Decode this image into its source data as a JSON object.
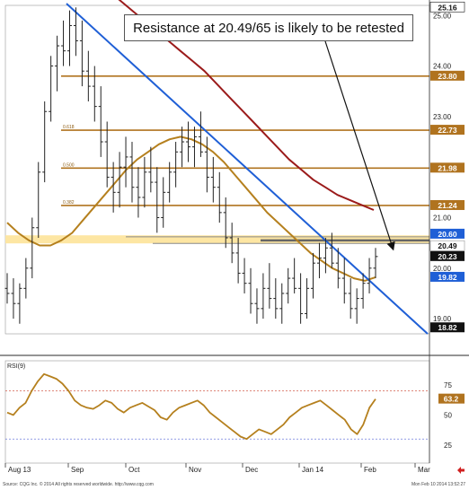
{
  "annotation": "Resistance at 20.49/65 is likely to be retested",
  "footer": {
    "source": "Source: CQG Inc. © 2014 All rights reserved worldwide. http://www.cqg.com",
    "timestamp": "Mon Feb 10 2014 13:52:27"
  },
  "colors": {
    "price_bars": "#222222",
    "trendline": "#1f5fd6",
    "ma_short": "#b5801e",
    "ma_long": "#9b1b1b",
    "fib_lines": "#b0731f",
    "support_band": "#fde6a3",
    "value_label_bg": "#b0731f",
    "dark_label_bg": "#111111",
    "blue_label_bg": "#1f5fd6",
    "rsi_line": "#b5801e",
    "rsi_upper": "#d45f4f",
    "rsi_lower": "#4f5fd4"
  },
  "chart_data": [
    {
      "type": "candlestick",
      "x_ticks": [
        "Aug 13",
        "Sep",
        "Oct",
        "Nov",
        "Dec",
        "Jan 14",
        "Feb",
        "Mar"
      ],
      "y_ticks": [
        "25.00",
        "24.00",
        "23.00",
        "22.00",
        "21.00",
        "20.00",
        "19.00"
      ],
      "ylim": [
        18.7,
        25.2
      ],
      "price_labels": [
        "25.16",
        "23.80",
        "22.73",
        "21.98",
        "21.24",
        "20.60",
        "20.49",
        "20.23",
        "19.82",
        "18.82"
      ],
      "fib_labels": [
        "0.618",
        "0.500",
        "0.382"
      ],
      "levels": {
        "fib_23_80": 23.8,
        "fib_22_73": 22.73,
        "fib_21_98": 21.98,
        "fib_21_24": 21.24,
        "resistance_band": [
          20.49,
          20.65
        ]
      },
      "ohlc": [
        [
          19.6,
          19.9,
          19.3,
          19.5
        ],
        [
          19.5,
          19.8,
          19.0,
          19.3
        ],
        [
          19.3,
          19.7,
          18.9,
          19.6
        ],
        [
          19.6,
          20.2,
          19.4,
          20.0
        ],
        [
          20.0,
          21.0,
          19.8,
          20.8
        ],
        [
          20.8,
          22.1,
          20.6,
          21.9
        ],
        [
          21.9,
          23.3,
          21.7,
          23.1
        ],
        [
          23.1,
          24.2,
          22.9,
          24.0
        ],
        [
          24.0,
          24.6,
          23.5,
          24.4
        ],
        [
          24.4,
          24.9,
          24.0,
          24.3
        ],
        [
          24.3,
          25.1,
          24.0,
          24.8
        ],
        [
          24.8,
          25.16,
          24.2,
          24.5
        ],
        [
          24.5,
          24.9,
          23.6,
          23.9
        ],
        [
          23.9,
          24.3,
          23.3,
          23.6
        ],
        [
          23.6,
          24.0,
          22.9,
          23.2
        ],
        [
          23.2,
          23.6,
          22.2,
          22.5
        ],
        [
          22.5,
          22.9,
          21.6,
          21.8
        ],
        [
          21.8,
          22.1,
          21.1,
          21.5
        ],
        [
          21.5,
          22.3,
          21.2,
          22.0
        ],
        [
          22.0,
          22.6,
          21.6,
          22.2
        ],
        [
          22.2,
          22.5,
          21.3,
          21.6
        ],
        [
          21.6,
          22.0,
          21.0,
          21.4
        ],
        [
          21.4,
          22.2,
          21.2,
          21.9
        ],
        [
          21.9,
          22.4,
          21.5,
          21.7
        ],
        [
          21.7,
          22.0,
          20.7,
          21.0
        ],
        [
          21.0,
          21.8,
          20.8,
          21.5
        ],
        [
          21.5,
          22.1,
          21.3,
          21.9
        ],
        [
          21.9,
          22.5,
          21.6,
          22.3
        ],
        [
          22.3,
          22.8,
          22.0,
          22.5
        ],
        [
          22.5,
          22.9,
          22.1,
          22.4
        ],
        [
          22.4,
          22.8,
          22.0,
          22.6
        ],
        [
          22.6,
          23.1,
          22.2,
          22.3
        ],
        [
          22.3,
          22.6,
          21.5,
          21.8
        ],
        [
          21.8,
          22.2,
          21.3,
          21.6
        ],
        [
          21.6,
          21.9,
          20.9,
          21.1
        ],
        [
          21.1,
          21.4,
          20.4,
          20.6
        ],
        [
          20.6,
          20.9,
          20.1,
          20.3
        ],
        [
          20.3,
          20.6,
          19.7,
          19.9
        ],
        [
          19.9,
          20.2,
          19.5,
          19.7
        ],
        [
          19.7,
          20.0,
          19.1,
          19.3
        ],
        [
          19.3,
          19.6,
          18.9,
          19.2
        ],
        [
          19.2,
          19.9,
          19.0,
          19.6
        ],
        [
          19.6,
          20.1,
          19.2,
          19.4
        ],
        [
          19.4,
          19.8,
          19.0,
          19.2
        ],
        [
          19.2,
          19.7,
          18.9,
          19.5
        ],
        [
          19.5,
          20.0,
          19.3,
          19.8
        ],
        [
          19.8,
          20.2,
          19.5,
          19.6
        ],
        [
          19.6,
          19.9,
          18.9,
          19.1
        ],
        [
          19.1,
          19.8,
          19.0,
          19.6
        ],
        [
          19.6,
          20.3,
          19.4,
          20.1
        ],
        [
          20.1,
          20.5,
          19.8,
          20.2
        ],
        [
          20.2,
          20.6,
          19.9,
          20.4
        ],
        [
          20.4,
          20.7,
          20.0,
          20.1
        ],
        [
          20.1,
          20.4,
          19.6,
          19.8
        ],
        [
          19.8,
          20.2,
          19.3,
          19.5
        ],
        [
          19.5,
          19.8,
          19.0,
          19.2
        ],
        [
          19.2,
          19.6,
          18.9,
          19.4
        ],
        [
          19.4,
          19.9,
          19.2,
          19.7
        ],
        [
          19.7,
          20.2,
          19.5,
          20.0
        ],
        [
          20.0,
          20.4,
          19.8,
          20.23
        ]
      ],
      "ma_short_values": [
        20.9,
        20.7,
        20.55,
        20.45,
        20.45,
        20.55,
        20.7,
        20.95,
        21.2,
        21.45,
        21.7,
        21.95,
        22.15,
        22.3,
        22.45,
        22.55,
        22.6,
        22.55,
        22.45,
        22.3,
        22.1,
        21.85,
        21.6,
        21.35,
        21.1,
        20.9,
        20.7,
        20.5,
        20.3,
        20.15,
        20.0,
        19.9,
        19.8,
        19.75,
        19.82
      ],
      "ma_long_values": [
        25.5,
        25.3,
        25.1,
        24.9,
        24.7,
        24.5,
        24.3,
        24.1,
        23.9,
        23.65,
        23.4,
        23.15,
        22.9,
        22.65,
        22.4,
        22.15,
        21.95,
        21.75,
        21.6,
        21.45,
        21.35,
        21.25,
        21.15
      ],
      "trendline": [
        [
          0,
          25.6
        ],
        [
          60,
          18.7
        ]
      ]
    },
    {
      "type": "line",
      "title": "RSI(9)",
      "y_ticks": [
        "75",
        "50",
        "25"
      ],
      "ylim": [
        10,
        95
      ],
      "series": [
        {
          "name": "RSI(9)",
          "values": [
            52,
            50,
            56,
            60,
            70,
            78,
            84,
            82,
            80,
            76,
            70,
            62,
            58,
            56,
            55,
            58,
            62,
            60,
            55,
            52,
            56,
            58,
            60,
            57,
            54,
            48,
            46,
            52,
            56,
            58,
            60,
            62,
            58,
            52,
            48,
            44,
            40,
            36,
            32,
            30,
            34,
            38,
            36,
            34,
            38,
            42,
            48,
            52,
            56,
            58,
            60,
            62,
            58,
            54,
            50,
            46,
            38,
            34,
            42,
            56,
            63.2
          ]
        }
      ],
      "current_value": "63.2",
      "upper_band": 70,
      "lower_band": 30
    }
  ]
}
